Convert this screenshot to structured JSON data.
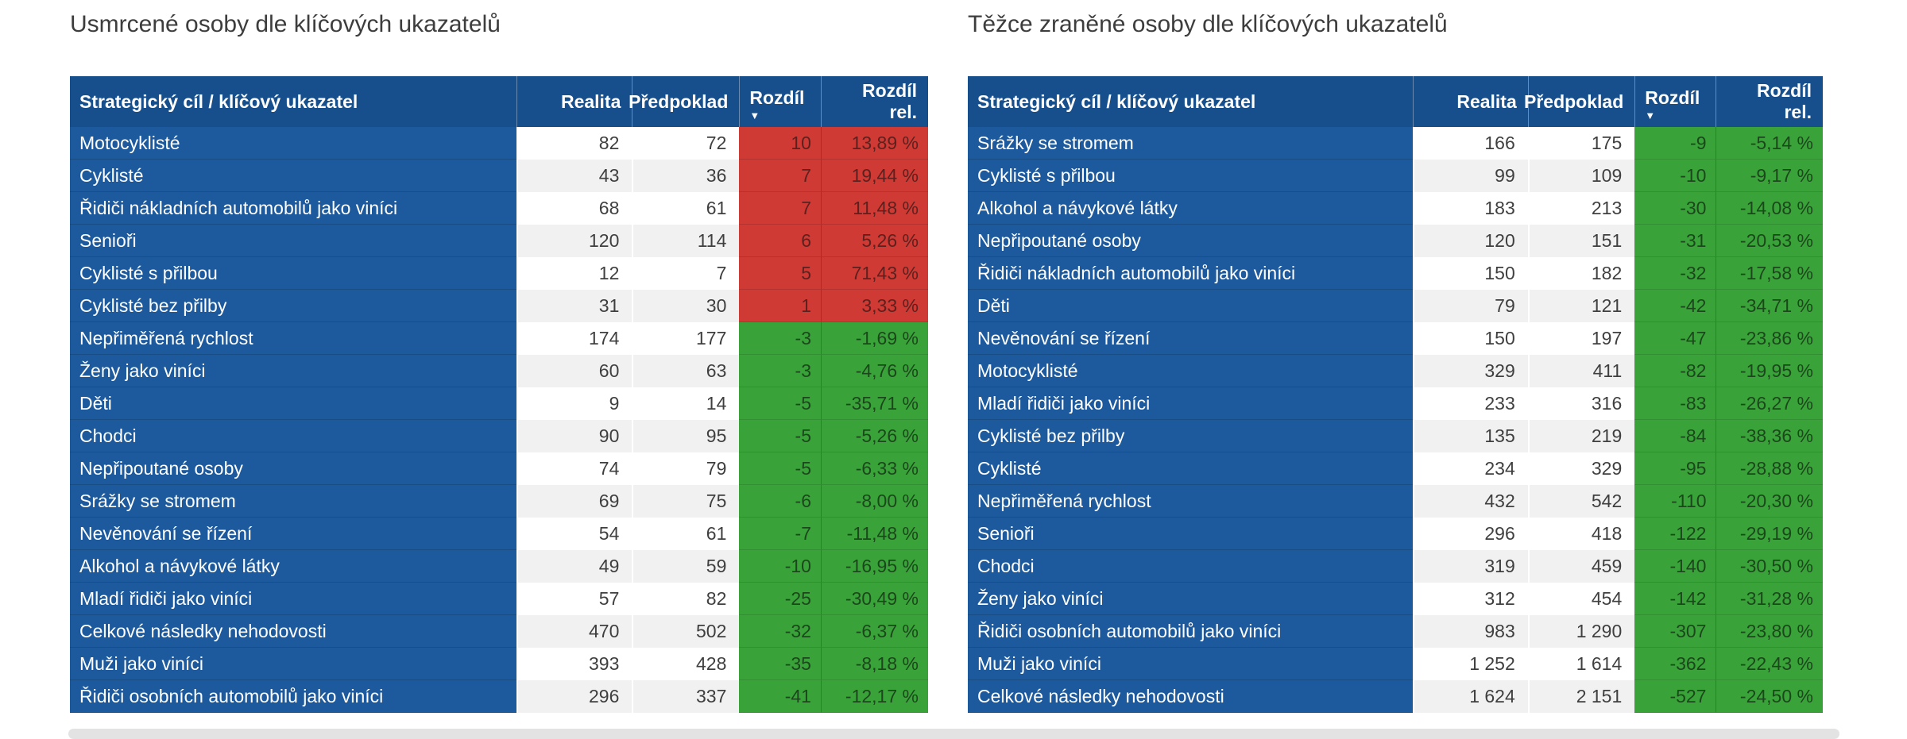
{
  "colors": {
    "header_blue": "#174F8C",
    "row_blue": "#1D5A9D",
    "positive_red": "#CF3A35",
    "negative_green": "#39A339",
    "value_text": "#3F3F3F",
    "alt_row_gray": "#F1F1F1",
    "title_gray": "#3D3D3D"
  },
  "icons": {
    "sort_descending": "▼"
  },
  "chart_data": [
    {
      "type": "table",
      "title": "Usmrcené osoby dle klíčových ukazatelů",
      "sort": {
        "column": "Rozdíl",
        "direction": "descending"
      },
      "columns": [
        {
          "key": "label",
          "label": "Strategický cíl / klíčový ukazatel",
          "numeric": false,
          "sorted": false
        },
        {
          "key": "realita",
          "label": "Realita",
          "numeric": true,
          "sorted": false
        },
        {
          "key": "predpoklad",
          "label": "Předpoklad",
          "numeric": true,
          "sorted": false
        },
        {
          "key": "rozdil",
          "label": "Rozdíl",
          "numeric": true,
          "sorted": true
        },
        {
          "key": "rozdil_rel",
          "label": "Rozdíl rel.",
          "numeric": true,
          "sorted": false
        }
      ],
      "rows": [
        {
          "label": "Motocyklisté",
          "realita": "82",
          "predpoklad": "72",
          "rozdil": "10",
          "rozdil_rel": "13,89 %"
        },
        {
          "label": "Cyklisté",
          "realita": "43",
          "predpoklad": "36",
          "rozdil": "7",
          "rozdil_rel": "19,44 %"
        },
        {
          "label": "Řidiči nákladních automobilů jako viníci",
          "realita": "68",
          "predpoklad": "61",
          "rozdil": "7",
          "rozdil_rel": "11,48 %"
        },
        {
          "label": "Senioři",
          "realita": "120",
          "predpoklad": "114",
          "rozdil": "6",
          "rozdil_rel": "5,26 %"
        },
        {
          "label": "Cyklisté s přilbou",
          "realita": "12",
          "predpoklad": "7",
          "rozdil": "5",
          "rozdil_rel": "71,43 %"
        },
        {
          "label": "Cyklisté bez přilby",
          "realita": "31",
          "predpoklad": "30",
          "rozdil": "1",
          "rozdil_rel": "3,33 %"
        },
        {
          "label": "Nepřiměřená rychlost",
          "realita": "174",
          "predpoklad": "177",
          "rozdil": "-3",
          "rozdil_rel": "-1,69 %"
        },
        {
          "label": "Ženy jako viníci",
          "realita": "60",
          "predpoklad": "63",
          "rozdil": "-3",
          "rozdil_rel": "-4,76 %"
        },
        {
          "label": "Děti",
          "realita": "9",
          "predpoklad": "14",
          "rozdil": "-5",
          "rozdil_rel": "-35,71 %"
        },
        {
          "label": "Chodci",
          "realita": "90",
          "predpoklad": "95",
          "rozdil": "-5",
          "rozdil_rel": "-5,26 %"
        },
        {
          "label": "Nepřipoutané osoby",
          "realita": "74",
          "predpoklad": "79",
          "rozdil": "-5",
          "rozdil_rel": "-6,33 %"
        },
        {
          "label": "Srážky se stromem",
          "realita": "69",
          "predpoklad": "75",
          "rozdil": "-6",
          "rozdil_rel": "-8,00 %"
        },
        {
          "label": "Nevěnování se řízení",
          "realita": "54",
          "predpoklad": "61",
          "rozdil": "-7",
          "rozdil_rel": "-11,48 %"
        },
        {
          "label": "Alkohol a návykové látky",
          "realita": "49",
          "predpoklad": "59",
          "rozdil": "-10",
          "rozdil_rel": "-16,95 %"
        },
        {
          "label": "Mladí řidiči jako viníci",
          "realita": "57",
          "predpoklad": "82",
          "rozdil": "-25",
          "rozdil_rel": "-30,49 %"
        },
        {
          "label": "Celkové následky nehodovosti",
          "realita": "470",
          "predpoklad": "502",
          "rozdil": "-32",
          "rozdil_rel": "-6,37 %"
        },
        {
          "label": "Muži jako viníci",
          "realita": "393",
          "predpoklad": "428",
          "rozdil": "-35",
          "rozdil_rel": "-8,18 %"
        },
        {
          "label": "Řidiči osobních automobilů jako viníci",
          "realita": "296",
          "predpoklad": "337",
          "rozdil": "-41",
          "rozdil_rel": "-12,17 %"
        }
      ]
    },
    {
      "type": "table",
      "title": "Těžce zraněné osoby dle klíčových ukazatelů",
      "sort": {
        "column": "Rozdíl",
        "direction": "descending"
      },
      "columns": [
        {
          "key": "label",
          "label": "Strategický cíl / klíčový ukazatel",
          "numeric": false,
          "sorted": false
        },
        {
          "key": "realita",
          "label": "Realita",
          "numeric": true,
          "sorted": false
        },
        {
          "key": "predpoklad",
          "label": "Předpoklad",
          "numeric": true,
          "sorted": false
        },
        {
          "key": "rozdil",
          "label": "Rozdíl",
          "numeric": true,
          "sorted": true
        },
        {
          "key": "rozdil_rel",
          "label": "Rozdíl rel.",
          "numeric": true,
          "sorted": false
        }
      ],
      "rows": [
        {
          "label": "Srážky se stromem",
          "realita": "166",
          "predpoklad": "175",
          "rozdil": "-9",
          "rozdil_rel": "-5,14 %"
        },
        {
          "label": "Cyklisté s přilbou",
          "realita": "99",
          "predpoklad": "109",
          "rozdil": "-10",
          "rozdil_rel": "-9,17 %"
        },
        {
          "label": "Alkohol a návykové látky",
          "realita": "183",
          "predpoklad": "213",
          "rozdil": "-30",
          "rozdil_rel": "-14,08 %"
        },
        {
          "label": "Nepřipoutané osoby",
          "realita": "120",
          "predpoklad": "151",
          "rozdil": "-31",
          "rozdil_rel": "-20,53 %"
        },
        {
          "label": "Řidiči nákladních automobilů jako viníci",
          "realita": "150",
          "predpoklad": "182",
          "rozdil": "-32",
          "rozdil_rel": "-17,58 %"
        },
        {
          "label": "Děti",
          "realita": "79",
          "predpoklad": "121",
          "rozdil": "-42",
          "rozdil_rel": "-34,71 %"
        },
        {
          "label": "Nevěnování se řízení",
          "realita": "150",
          "predpoklad": "197",
          "rozdil": "-47",
          "rozdil_rel": "-23,86 %"
        },
        {
          "label": "Motocyklisté",
          "realita": "329",
          "predpoklad": "411",
          "rozdil": "-82",
          "rozdil_rel": "-19,95 %"
        },
        {
          "label": "Mladí řidiči jako viníci",
          "realita": "233",
          "predpoklad": "316",
          "rozdil": "-83",
          "rozdil_rel": "-26,27 %"
        },
        {
          "label": "Cyklisté bez přilby",
          "realita": "135",
          "predpoklad": "219",
          "rozdil": "-84",
          "rozdil_rel": "-38,36 %"
        },
        {
          "label": "Cyklisté",
          "realita": "234",
          "predpoklad": "329",
          "rozdil": "-95",
          "rozdil_rel": "-28,88 %"
        },
        {
          "label": "Nepřiměřená rychlost",
          "realita": "432",
          "predpoklad": "542",
          "rozdil": "-110",
          "rozdil_rel": "-20,30 %"
        },
        {
          "label": "Senioři",
          "realita": "296",
          "predpoklad": "418",
          "rozdil": "-122",
          "rozdil_rel": "-29,19 %"
        },
        {
          "label": "Chodci",
          "realita": "319",
          "predpoklad": "459",
          "rozdil": "-140",
          "rozdil_rel": "-30,50 %"
        },
        {
          "label": "Ženy jako viníci",
          "realita": "312",
          "predpoklad": "454",
          "rozdil": "-142",
          "rozdil_rel": "-31,28 %"
        },
        {
          "label": "Řidiči osobních automobilů jako viníci",
          "realita": "983",
          "predpoklad": "1 290",
          "rozdil": "-307",
          "rozdil_rel": "-23,80 %"
        },
        {
          "label": "Muži jako viníci",
          "realita": "1 252",
          "predpoklad": "1 614",
          "rozdil": "-362",
          "rozdil_rel": "-22,43 %"
        },
        {
          "label": "Celkové následky nehodovosti",
          "realita": "1 624",
          "predpoklad": "2 151",
          "rozdil": "-527",
          "rozdil_rel": "-24,50 %"
        }
      ]
    }
  ]
}
